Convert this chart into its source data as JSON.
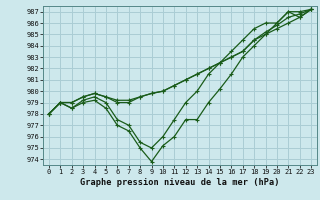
{
  "title": "Graphe pression niveau de la mer (hPa)",
  "bg_color": "#cde8ec",
  "grid_color": "#aacdd4",
  "line_color": "#1a5c1a",
  "series": [
    [
      978.0,
      979.0,
      978.5,
      979.0,
      979.2,
      978.5,
      977.0,
      976.5,
      975.0,
      973.8,
      975.2,
      976.0,
      977.5,
      977.5,
      979.0,
      980.2,
      981.5,
      983.0,
      984.0,
      985.0,
      986.0,
      987.0,
      987.0,
      987.2
    ],
    [
      978.0,
      979.0,
      978.5,
      979.2,
      979.5,
      979.0,
      977.5,
      977.0,
      975.5,
      975.0,
      976.0,
      977.5,
      979.0,
      980.0,
      981.5,
      982.5,
      983.5,
      984.5,
      985.5,
      986.0,
      986.0,
      987.0,
      986.5,
      987.2
    ],
    [
      978.0,
      979.0,
      979.0,
      979.5,
      979.8,
      979.5,
      979.2,
      979.2,
      979.5,
      979.8,
      980.0,
      980.5,
      981.0,
      981.5,
      982.0,
      982.5,
      983.0,
      983.5,
      984.5,
      985.0,
      985.5,
      986.0,
      986.5,
      987.2
    ],
    [
      978.0,
      979.0,
      979.0,
      979.5,
      979.8,
      979.5,
      979.0,
      979.0,
      979.5,
      979.8,
      980.0,
      980.5,
      981.0,
      981.5,
      982.0,
      982.5,
      983.0,
      983.5,
      984.5,
      985.2,
      985.8,
      986.5,
      986.8,
      987.2
    ]
  ],
  "xlim": [
    -0.5,
    23.5
  ],
  "ylim": [
    973.5,
    987.5
  ],
  "yticks": [
    974,
    975,
    976,
    977,
    978,
    979,
    980,
    981,
    982,
    983,
    984,
    985,
    986,
    987
  ],
  "xticks": [
    0,
    1,
    2,
    3,
    4,
    5,
    6,
    7,
    8,
    9,
    10,
    11,
    12,
    13,
    14,
    15,
    16,
    17,
    18,
    19,
    20,
    21,
    22,
    23
  ],
  "figsize": [
    3.2,
    2.0
  ],
  "dpi": 100
}
